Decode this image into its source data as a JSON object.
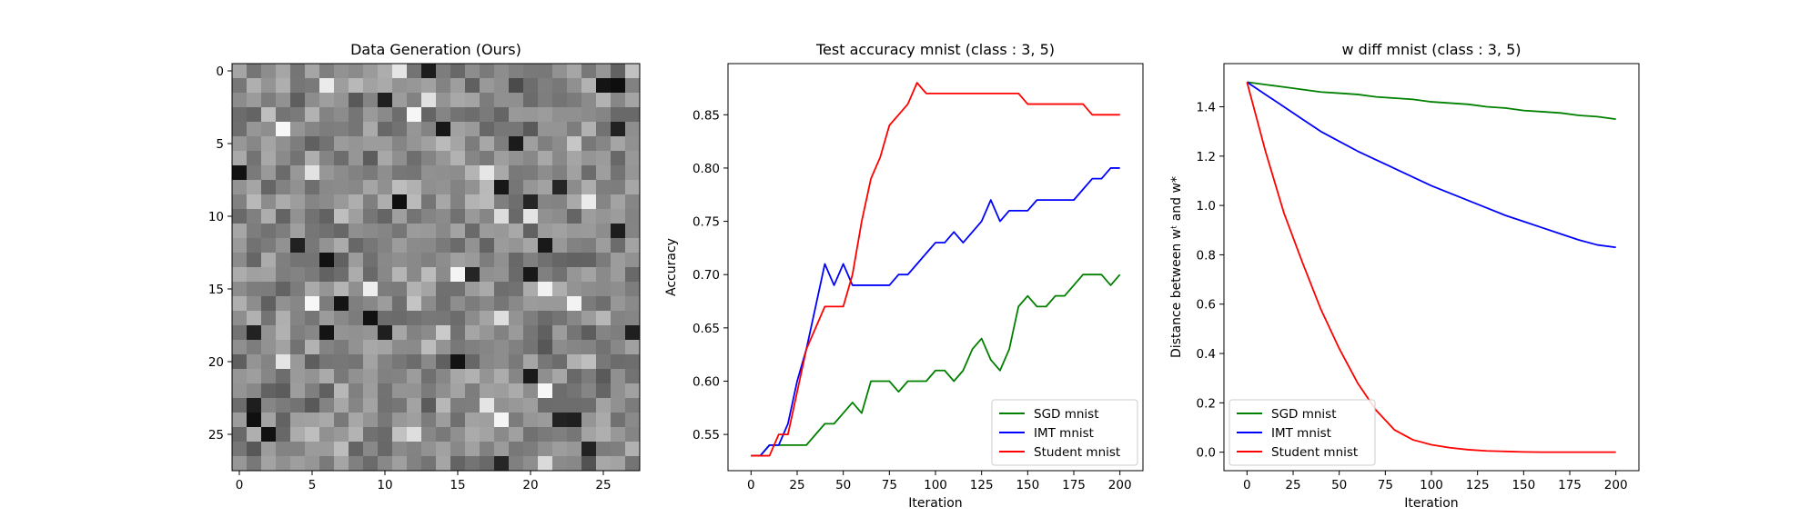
{
  "chart_data": [
    {
      "type": "heatmap",
      "title": "Data Generation (Ours)",
      "colormap": "gray",
      "rows": 28,
      "cols": 28,
      "xticks": [
        0,
        5,
        10,
        15,
        20,
        25
      ],
      "yticks": [
        0,
        5,
        10,
        15,
        20,
        25
      ],
      "values": "random grayscale noise, mostly mid-gray (about 0.3-0.8)"
    },
    {
      "type": "line",
      "title": "Test accuracy mnist (class : 3, 5)",
      "xlabel": "Iteration",
      "ylabel": "Accuracy",
      "xlim": [
        -12.5,
        212.5
      ],
      "ylim": [
        0.516,
        0.898
      ],
      "xticks": [
        0,
        25,
        50,
        75,
        100,
        125,
        150,
        175,
        200
      ],
      "yticks": [
        0.55,
        0.6,
        0.65,
        0.7,
        0.75,
        0.8,
        0.85
      ],
      "legend": "lower-right",
      "series": [
        {
          "name": "SGD mnist",
          "color": "#008000",
          "x": [
            0,
            5,
            10,
            15,
            20,
            25,
            30,
            35,
            40,
            45,
            50,
            55,
            60,
            65,
            70,
            75,
            80,
            85,
            90,
            95,
            100,
            105,
            110,
            115,
            120,
            125,
            130,
            135,
            140,
            145,
            150,
            155,
            160,
            165,
            170,
            175,
            180,
            185,
            190,
            195,
            200
          ],
          "values": [
            0.53,
            0.53,
            0.54,
            0.54,
            0.54,
            0.54,
            0.54,
            0.55,
            0.56,
            0.56,
            0.57,
            0.58,
            0.57,
            0.6,
            0.6,
            0.6,
            0.59,
            0.6,
            0.6,
            0.6,
            0.61,
            0.61,
            0.6,
            0.61,
            0.63,
            0.64,
            0.62,
            0.61,
            0.63,
            0.67,
            0.68,
            0.67,
            0.67,
            0.68,
            0.68,
            0.69,
            0.7,
            0.7,
            0.7,
            0.69,
            0.7
          ]
        },
        {
          "name": "IMT mnist",
          "color": "#0000ff",
          "x": [
            0,
            5,
            10,
            15,
            20,
            25,
            30,
            35,
            40,
            45,
            50,
            55,
            60,
            65,
            70,
            75,
            80,
            85,
            90,
            95,
            100,
            105,
            110,
            115,
            120,
            125,
            130,
            135,
            140,
            145,
            150,
            155,
            160,
            165,
            170,
            175,
            180,
            185,
            190,
            195,
            200
          ],
          "values": [
            0.53,
            0.53,
            0.54,
            0.54,
            0.56,
            0.6,
            0.63,
            0.67,
            0.71,
            0.69,
            0.71,
            0.69,
            0.69,
            0.69,
            0.69,
            0.69,
            0.7,
            0.7,
            0.71,
            0.72,
            0.73,
            0.73,
            0.74,
            0.73,
            0.74,
            0.75,
            0.77,
            0.75,
            0.76,
            0.76,
            0.76,
            0.77,
            0.77,
            0.77,
            0.77,
            0.77,
            0.78,
            0.79,
            0.79,
            0.8,
            0.8
          ]
        },
        {
          "name": "Student mnist",
          "color": "#ff0000",
          "x": [
            0,
            5,
            10,
            15,
            20,
            25,
            30,
            35,
            40,
            45,
            50,
            55,
            60,
            65,
            70,
            75,
            80,
            85,
            90,
            95,
            100,
            105,
            110,
            115,
            120,
            125,
            130,
            135,
            140,
            145,
            150,
            155,
            160,
            165,
            170,
            175,
            180,
            185,
            190,
            195,
            200
          ],
          "values": [
            0.53,
            0.53,
            0.53,
            0.55,
            0.55,
            0.59,
            0.63,
            0.65,
            0.67,
            0.67,
            0.67,
            0.7,
            0.75,
            0.79,
            0.81,
            0.84,
            0.85,
            0.86,
            0.88,
            0.87,
            0.87,
            0.87,
            0.87,
            0.87,
            0.87,
            0.87,
            0.87,
            0.87,
            0.87,
            0.87,
            0.86,
            0.86,
            0.86,
            0.86,
            0.86,
            0.86,
            0.86,
            0.85,
            0.85,
            0.85,
            0.85
          ]
        }
      ]
    },
    {
      "type": "line",
      "title": "w diff mnist (class : 3, 5)",
      "xlabel": "Iteration",
      "ylabel": "Distance between wᵗ and w*",
      "xlim": [
        -12.5,
        212.5
      ],
      "ylim": [
        -0.075,
        1.575
      ],
      "xticks": [
        0,
        25,
        50,
        75,
        100,
        125,
        150,
        175,
        200
      ],
      "yticks": [
        0.0,
        0.2,
        0.4,
        0.6,
        0.8,
        1.0,
        1.2,
        1.4
      ],
      "legend": "lower-left",
      "series": [
        {
          "name": "SGD mnist",
          "color": "#008000",
          "x": [
            0,
            10,
            20,
            30,
            40,
            50,
            60,
            70,
            80,
            90,
            100,
            110,
            120,
            130,
            140,
            150,
            160,
            170,
            180,
            190,
            200
          ],
          "values": [
            1.5,
            1.49,
            1.48,
            1.47,
            1.46,
            1.455,
            1.45,
            1.44,
            1.435,
            1.43,
            1.42,
            1.415,
            1.41,
            1.4,
            1.395,
            1.385,
            1.38,
            1.375,
            1.365,
            1.36,
            1.35
          ]
        },
        {
          "name": "IMT mnist",
          "color": "#0000ff",
          "x": [
            0,
            10,
            20,
            30,
            40,
            50,
            60,
            70,
            80,
            90,
            100,
            110,
            120,
            130,
            140,
            150,
            160,
            170,
            180,
            190,
            200
          ],
          "values": [
            1.5,
            1.45,
            1.4,
            1.35,
            1.3,
            1.26,
            1.22,
            1.185,
            1.15,
            1.115,
            1.08,
            1.05,
            1.02,
            0.99,
            0.96,
            0.935,
            0.91,
            0.885,
            0.86,
            0.84,
            0.83
          ]
        },
        {
          "name": "Student mnist",
          "color": "#ff0000",
          "x": [
            0,
            10,
            20,
            30,
            40,
            50,
            60,
            70,
            80,
            90,
            100,
            110,
            120,
            130,
            140,
            150,
            160,
            170,
            180,
            190,
            200
          ],
          "values": [
            1.5,
            1.22,
            0.97,
            0.77,
            0.58,
            0.42,
            0.28,
            0.17,
            0.09,
            0.05,
            0.03,
            0.018,
            0.01,
            0.005,
            0.003,
            0.001,
            0.0,
            0.0,
            0.0,
            0.0,
            0.0
          ]
        }
      ]
    }
  ]
}
